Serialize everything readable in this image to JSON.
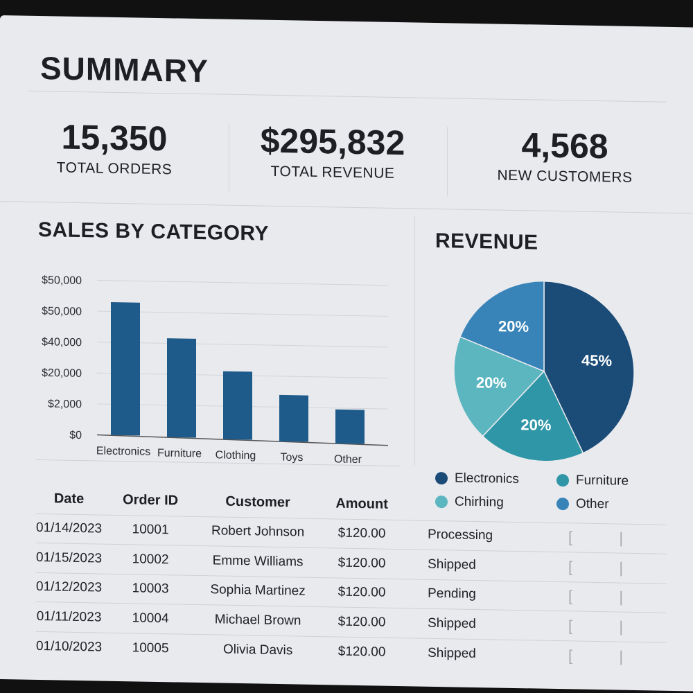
{
  "title": "SUMMARY",
  "kpis": [
    {
      "value": "15,350",
      "label": "TOTAL ORDERS"
    },
    {
      "value": "$295,832",
      "label": "TOTAL REVENUE"
    },
    {
      "value": "4,568",
      "label": "NEW CUSTOMERS"
    }
  ],
  "chart_data": [
    {
      "type": "bar",
      "title": "SALES BY CATEGORY",
      "categories": [
        "Electronics",
        "Furniture",
        "Clothing",
        "Toys",
        "Other"
      ],
      "values": [
        43000,
        32000,
        22000,
        15000,
        11000
      ],
      "ytick_labels": [
        "$0",
        "$2,000",
        "$20,000",
        "$40,000",
        "$50,000",
        "$50,000"
      ],
      "ylim": [
        0,
        50000
      ],
      "grid": true,
      "color": "#1f5b8a"
    },
    {
      "type": "pie",
      "title": "REVENUE",
      "categories": [
        "Electronics",
        "Furniture",
        "Chirhing",
        "Other"
      ],
      "values": [
        45,
        20,
        20,
        20
      ],
      "labels": [
        "45%",
        "20%",
        "20%",
        "20%"
      ],
      "colors": [
        "#1b4c78",
        "#2e96a6",
        "#5bb6c0",
        "#3884b9"
      ],
      "legend": "bottom"
    }
  ],
  "table": {
    "headers": [
      "Date",
      "Order ID",
      "Customer",
      "Amount"
    ],
    "rows": [
      {
        "date": "01/14/2023",
        "id": "10001",
        "customer": "Robert Johnson",
        "amount": "$120.00",
        "status": "Processing"
      },
      {
        "date": "01/15/2023",
        "id": "10002",
        "customer": "Emme Williams",
        "amount": "$120.00",
        "status": "Shipped"
      },
      {
        "date": "01/12/2023",
        "id": "10003",
        "customer": "Sophia Martinez",
        "amount": "$120.00",
        "status": "Pending"
      },
      {
        "date": "01/11/2023",
        "id": "10004",
        "customer": "Michael Brown",
        "amount": "$120.00",
        "status": "Shipped"
      },
      {
        "date": "01/10/2023",
        "id": "10005",
        "customer": "Olivia Davis",
        "amount": "$120.00",
        "status": "Shipped"
      }
    ]
  }
}
